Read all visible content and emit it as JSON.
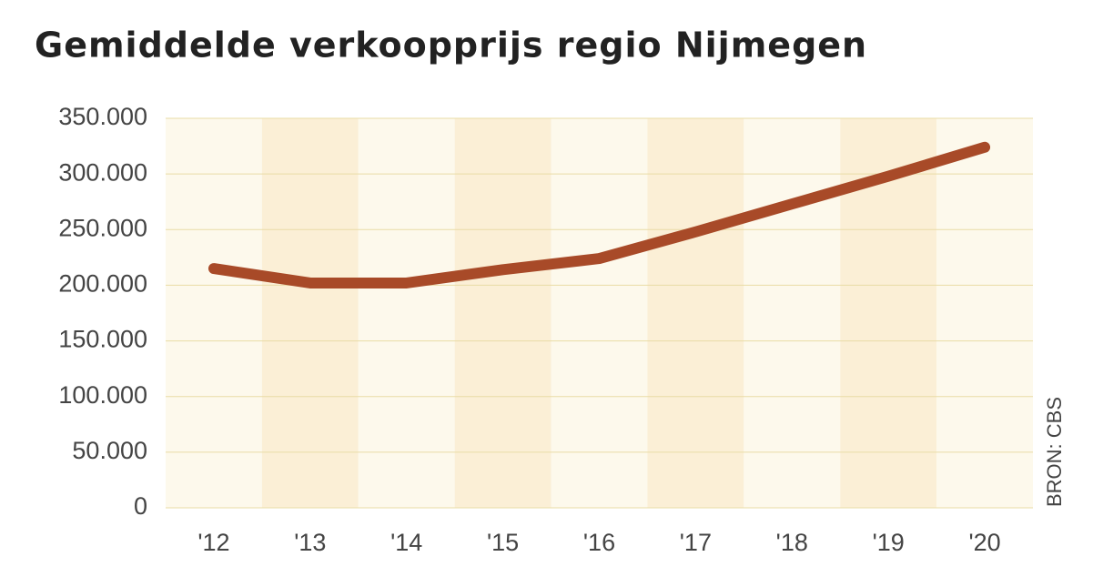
{
  "chart_data": {
    "type": "line",
    "title": "Gemiddelde verkoopprijs regio Nijmegen",
    "source": "BRON: CBS",
    "categories": [
      "'12",
      "'13",
      "'14",
      "'15",
      "'16",
      "'17",
      "'18",
      "'19",
      "'20"
    ],
    "series": [
      {
        "name": "Gemiddelde verkoopprijs",
        "color": "#a84a28",
        "values": [
          215000,
          202000,
          202000,
          214000,
          224000,
          248000,
          273000,
          298000,
          324000
        ]
      }
    ],
    "ylim": [
      0,
      350000
    ],
    "yticks": [
      0,
      {
        "value": 50000,
        "label": "50.000"
      },
      {
        "value": 100000,
        "label": "100.000"
      },
      {
        "value": 150000,
        "label": "150.000"
      },
      {
        "value": 200000,
        "label": "200.000"
      },
      {
        "value": 250000,
        "label": "250.000"
      },
      {
        "value": 300000,
        "label": "300.000"
      },
      {
        "value": 350000,
        "label": "350.000"
      }
    ],
    "grid": true
  }
}
